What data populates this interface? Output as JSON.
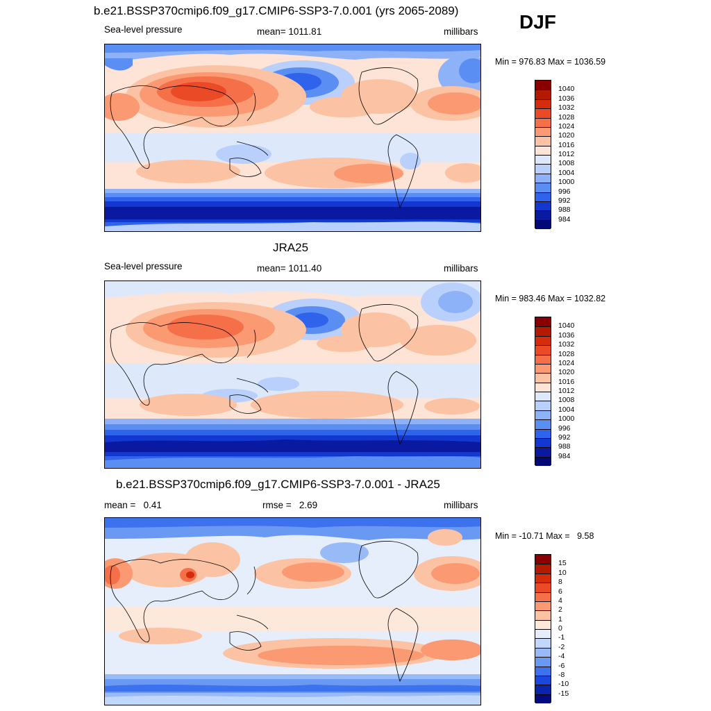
{
  "season": "DJF",
  "colors": {
    "abs": [
      "#8a0000",
      "#b41a00",
      "#d42c0c",
      "#ea4a26",
      "#f57048",
      "#fb9a72",
      "#fcc2a4",
      "#fde4d6",
      "#dde8fb",
      "#b8d0fb",
      "#8db2f8",
      "#5b8ef3",
      "#2f63ec",
      "#1238d0",
      "#0a1aa0",
      "#040876"
    ],
    "diff": [
      "#8a0000",
      "#b41a00",
      "#d42c0c",
      "#ea4a26",
      "#f57048",
      "#fb9a72",
      "#fcc2a4",
      "#fde8dc",
      "#e6eefc",
      "#c2d8fb",
      "#98bbf8",
      "#6a99f3",
      "#3c72ee",
      "#1a48dc",
      "#0a24ac",
      "#040a80"
    ]
  },
  "panels": [
    {
      "title": "b.e21.BSSP370cmip6.f09_g17.CMIP6-SSP3-7.0.001 (yrs 2065-2089)",
      "left_label": "Sea-level pressure",
      "center_label": "mean= 1011.81",
      "right_label": "millibars",
      "minmax": "Min = 976.83 Max = 1036.59",
      "ticks": [
        "1040",
        "1036",
        "1032",
        "1028",
        "1024",
        "1020",
        "1016",
        "1012",
        "1008",
        "1004",
        "1000",
        "996",
        "992",
        "988",
        "984"
      ]
    },
    {
      "title": "JRA25",
      "left_label": "Sea-level pressure",
      "center_label": "mean= 1011.40",
      "right_label": "millibars",
      "minmax": "Min = 983.46 Max = 1032.82",
      "ticks": [
        "1040",
        "1036",
        "1032",
        "1028",
        "1024",
        "1020",
        "1016",
        "1012",
        "1008",
        "1004",
        "1000",
        "996",
        "992",
        "988",
        "984"
      ]
    },
    {
      "title": "b.e21.BSSP370cmip6.f09_g17.CMIP6-SSP3-7.0.001 - JRA25",
      "left_label": "mean =   0.41",
      "center_label": "rmse =   2.69",
      "right_label": "millibars",
      "minmax": "Min = -10.71 Max =   9.58",
      "ticks": [
        "15",
        "10",
        "8",
        "6",
        "4",
        "2",
        "1",
        "0",
        "-1",
        "-2",
        "-4",
        "-6",
        "-8",
        "-10",
        "-15"
      ]
    }
  ]
}
